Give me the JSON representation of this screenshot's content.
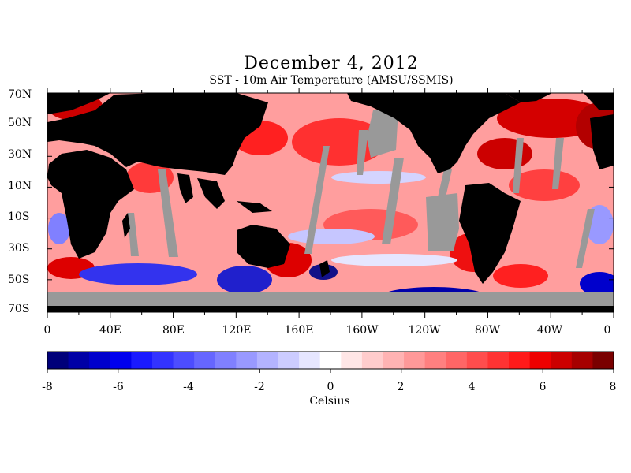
{
  "title": "December 4, 2012",
  "subtitle": "SST - 10m Air Temperature (AMSU/SSMIS)",
  "latitude_labels": [
    "70N",
    "50N",
    "30N",
    "10N",
    "10S",
    "30S",
    "50S",
    "70S"
  ],
  "longitude_labels": [
    "0",
    "40E",
    "80E",
    "120E",
    "160E",
    "160W",
    "120W",
    "80W",
    "40W",
    "0"
  ],
  "colorbar": {
    "units": "Celsius",
    "min": -8,
    "max": 8,
    "tick_labels": [
      "-8",
      "-6",
      "-4",
      "-2",
      "0",
      "2",
      "4",
      "6",
      "8"
    ],
    "colors": [
      "#00007a",
      "#0000a6",
      "#0000cc",
      "#0000ee",
      "#1a1aff",
      "#3333ff",
      "#4d4dff",
      "#6666ff",
      "#8080ff",
      "#9999ff",
      "#b3b3ff",
      "#ccccff",
      "#e6e6ff",
      "#ffffff",
      "#ffe6e6",
      "#ffcccc",
      "#ffb3b3",
      "#ff9999",
      "#ff8080",
      "#ff6666",
      "#ff4d4d",
      "#ff3333",
      "#ff1a1a",
      "#ee0000",
      "#cc0000",
      "#a60000",
      "#7a0000"
    ]
  },
  "colors": {
    "land": "#000000",
    "no_data": "#999999",
    "ocean_base": "#ff9e9e"
  }
}
